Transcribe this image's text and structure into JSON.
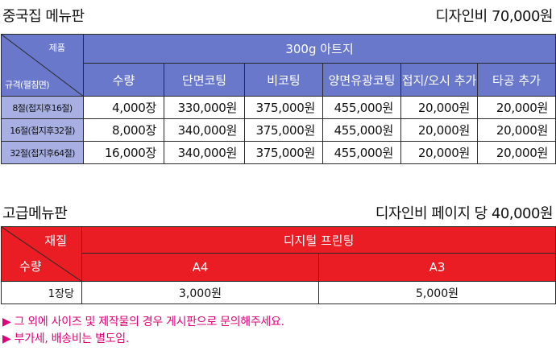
{
  "section1": {
    "title": "중국집 메뉴판",
    "design_fee": "디자인비 70,000원",
    "corner_top": "제품",
    "corner_bottom": "규격(펼침면)",
    "paper": "300g 아트지",
    "columns": [
      "수량",
      "단면코팅",
      "비코팅",
      "양면유광코팅",
      "접지/오시 추가",
      "타공 추가"
    ],
    "rows": [
      {
        "spec": "8절(접지후16절)",
        "cells": [
          "4,000장",
          "330,000원",
          "375,000원",
          "455,000원",
          "20,000원",
          "20,000원"
        ]
      },
      {
        "spec": "16절(접지후32절)",
        "cells": [
          "8,000장",
          "340,000원",
          "375,000원",
          "455,000원",
          "20,000원",
          "20,000원"
        ]
      },
      {
        "spec": "32절(접지후64절)",
        "cells": [
          "16,000장",
          "340,000원",
          "375,000원",
          "455,000원",
          "20,000원",
          "20,000원"
        ]
      }
    ]
  },
  "section2": {
    "title": "고급메뉴판",
    "design_fee": "디자인비 페이지 당 40,000원",
    "corner_top": "재질",
    "corner_bottom": "수량",
    "material": "디지털 프린팅",
    "sizes": [
      "A4",
      "A3"
    ],
    "rows": [
      {
        "label": "1장당",
        "cells": [
          "3,000원",
          "5,000원"
        ]
      }
    ]
  },
  "notes": [
    "▶ 그 외에 사이즈 및 제작물의 경우 게시판으로 문의해주세요.",
    "▶ 부가세, 배송비는 별도임."
  ]
}
